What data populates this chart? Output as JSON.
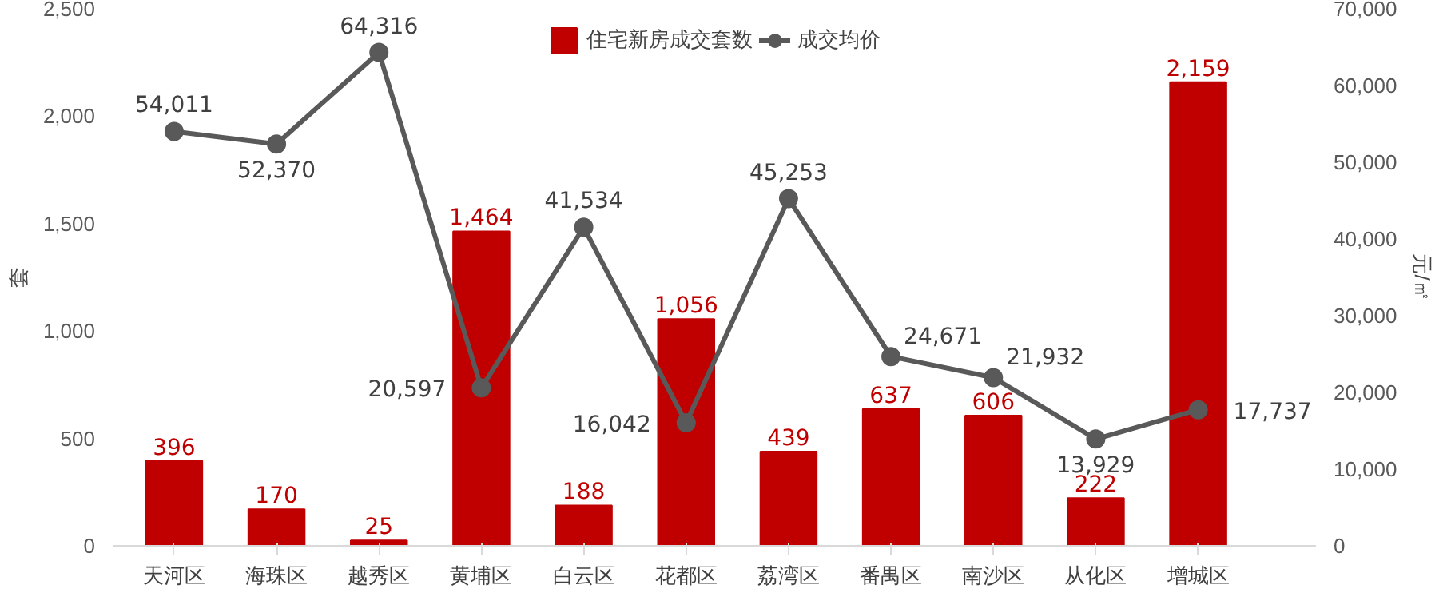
{
  "chart_data": {
    "type": "bar",
    "ylabel": "套",
    "y2label": "元/㎡",
    "categories": [
      "天河区",
      "海珠区",
      "越秀区",
      "黄埔区",
      "白云区",
      "花都区",
      "荔湾区",
      "番禺区",
      "南沙区",
      "从化区",
      "增城区"
    ],
    "series": [
      {
        "name": "住宅新房成交套数",
        "color": "#c00000",
        "values": [
          396,
          170,
          25,
          1464,
          188,
          1056,
          439,
          637,
          606,
          222,
          2159
        ],
        "value_labels": [
          "396",
          "170",
          "25",
          "1,464",
          "188",
          "1,056",
          "439",
          "637",
          "606",
          "222",
          "2,159"
        ]
      },
      {
        "name": "成交均价",
        "type": "line",
        "axis": "y2",
        "color": "#595959",
        "marker": "circle",
        "values": [
          54011,
          52370,
          64316,
          20597,
          41534,
          16042,
          45253,
          24671,
          21932,
          13929,
          17737
        ],
        "value_labels": [
          "54,011",
          "52,370",
          "64,316",
          "20,597",
          "41,534",
          "16,042",
          "45,253",
          "24,671",
          "21,932",
          "13,929",
          "17,737"
        ]
      }
    ],
    "ylim": [
      0,
      2500
    ],
    "yticks": [
      0,
      500,
      {
        "value": 1000,
        "label": "1,000"
      },
      {
        "value": 1500,
        "label": "1,500"
      },
      {
        "value": 2000,
        "label": "2,000"
      },
      {
        "value": 2500,
        "label": "2,500"
      }
    ],
    "y2lim": [
      0,
      70000
    ],
    "y2ticks": [
      0,
      {
        "value": 10000,
        "label": "10,000"
      },
      {
        "value": 20000,
        "label": "20,000"
      },
      {
        "value": 30000,
        "label": "30,000"
      },
      {
        "value": 40000,
        "label": "40,000"
      },
      {
        "value": 50000,
        "label": "50,000"
      },
      {
        "value": 60000,
        "label": "60,000"
      },
      {
        "value": 70000,
        "label": "70,000"
      }
    ],
    "grid": false,
    "legend": "top"
  }
}
